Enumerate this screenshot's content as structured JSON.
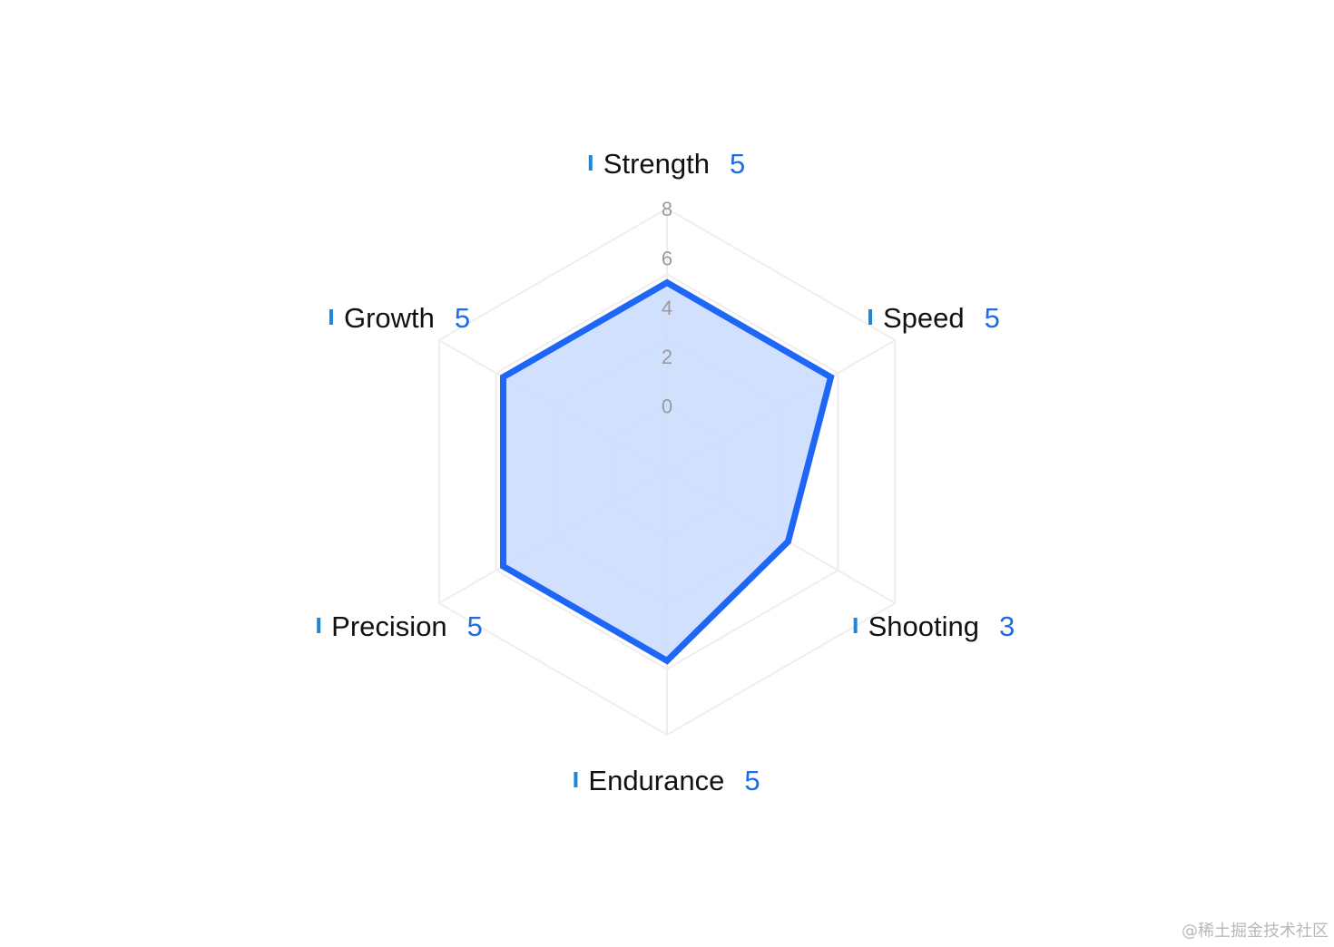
{
  "chart_data": {
    "type": "radar",
    "title": "",
    "indicators": [
      "Strength",
      "Speed",
      "Shooting",
      "Endurance",
      "Precision",
      "Growth"
    ],
    "values": [
      5,
      5,
      3,
      5,
      5,
      5
    ],
    "axis_max": 8,
    "ticks": [
      0,
      2,
      4,
      6,
      8
    ],
    "ring_count": 4,
    "grid": true,
    "legend": "none"
  },
  "colors": {
    "series_line": "#1e66f5",
    "series_fill": "#c9dbfd",
    "value_text": "#1d6ce3",
    "name_bar": "#1b86e0",
    "grid": "#eeeeee"
  },
  "watermark": "@稀土掘金技术社区"
}
